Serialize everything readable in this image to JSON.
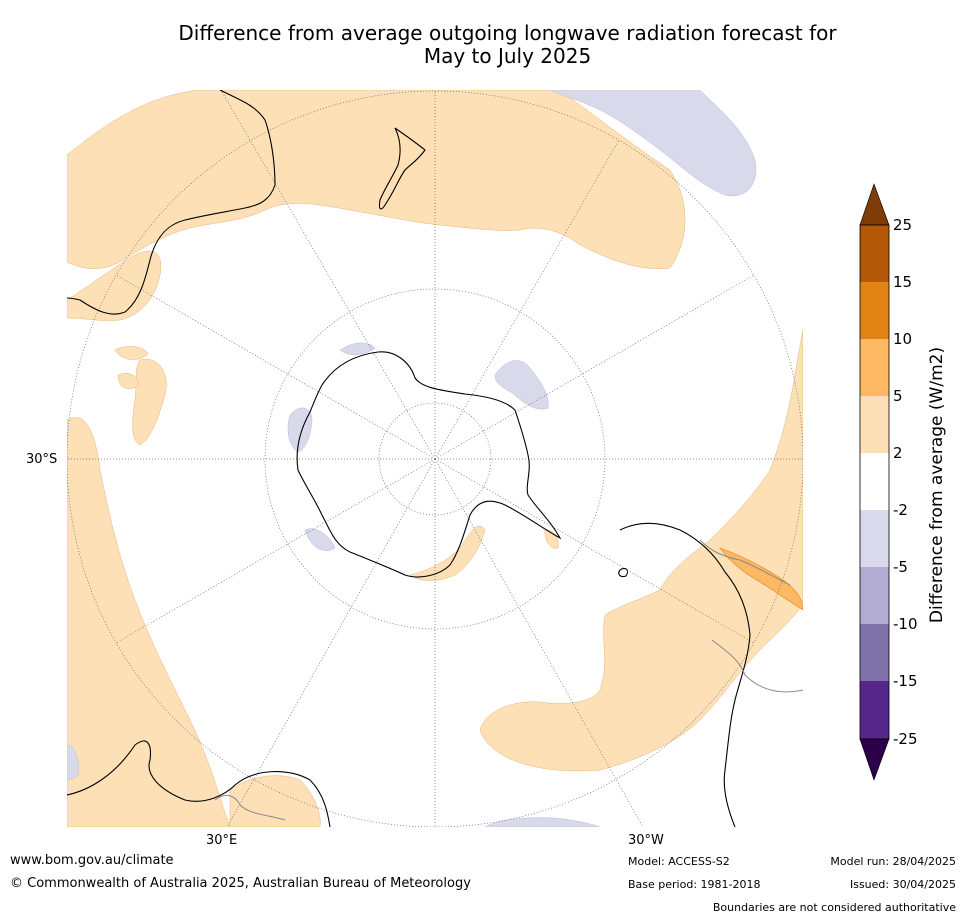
{
  "title": {
    "line1": "Difference from average outgoing longwave radiation forecast for",
    "line2": "May to July 2025"
  },
  "map_labels": {
    "lat_30s": "30°S",
    "lon_30e": "30°E",
    "lon_30w": "30°W"
  },
  "colorbar": {
    "axis_title": "Difference from average (W/m2)",
    "ticks": [
      "25",
      "15",
      "10",
      "5",
      "2",
      "-2",
      "-5",
      "-10",
      "-15",
      "-25"
    ],
    "colors": {
      "above_max": "#7f3b08",
      "15_to_25": "#b35806",
      "10_to_15": "#e08214",
      "5_to_10": "#fdb863",
      "2_to_5": "#fee0b6",
      "neutral": "#ffffff",
      "m5_to_m2": "#d8daeb",
      "m10_to_m5": "#b2abd2",
      "m15_to_m10": "#8073ac",
      "m25_to_m15": "#542788",
      "below_min": "#2d004b"
    }
  },
  "footer": {
    "website": "www.bom.gov.au/climate",
    "copyright": "© Commonwealth of Australia 2025, Australian Bureau of Meteorology",
    "model": "Model: ACCESS-S2",
    "base_period": "Base period: 1981-2018",
    "model_run": "Model run: 28/04/2025",
    "issued": "Issued: 30/04/2025",
    "disclaimer": "Boundaries are not considered authoritative"
  }
}
